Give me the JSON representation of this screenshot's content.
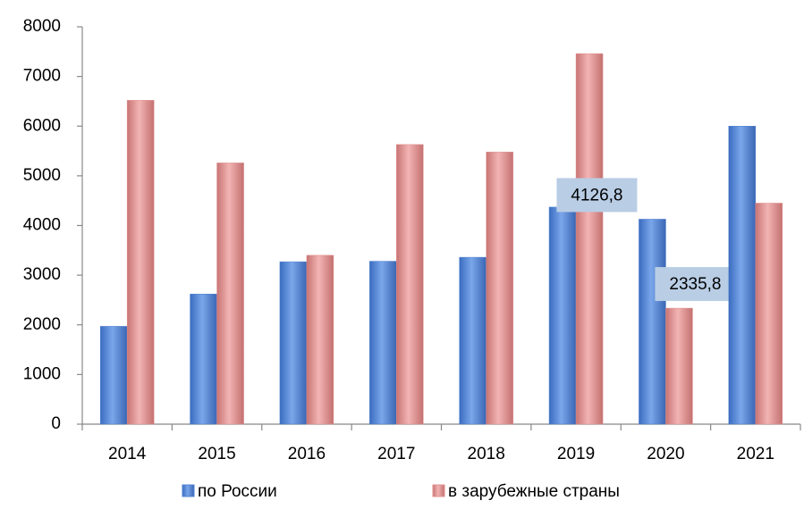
{
  "chart_data": {
    "type": "bar",
    "categories": [
      "2014",
      "2015",
      "2016",
      "2017",
      "2018",
      "2019",
      "2020",
      "2021"
    ],
    "series": [
      {
        "name": "по России",
        "color": "#4f81d0",
        "values": [
          1970,
          2620,
          3270,
          3280,
          3360,
          4370,
          4126.8,
          6000
        ],
        "value_labels": [
          null,
          null,
          null,
          null,
          null,
          null,
          "4126,8",
          null
        ]
      },
      {
        "name": "в зарубежные страны",
        "color": "#e0908f",
        "values": [
          6520,
          5260,
          3400,
          5630,
          5480,
          7460,
          2335.8,
          4450
        ],
        "value_labels": [
          null,
          null,
          null,
          null,
          null,
          null,
          "2335,8",
          null
        ]
      }
    ],
    "ylim": [
      0,
      8000
    ],
    "yticks": [
      0,
      1000,
      2000,
      3000,
      4000,
      5000,
      6000,
      7000,
      8000
    ],
    "grid": false,
    "legend": "bottom"
  }
}
